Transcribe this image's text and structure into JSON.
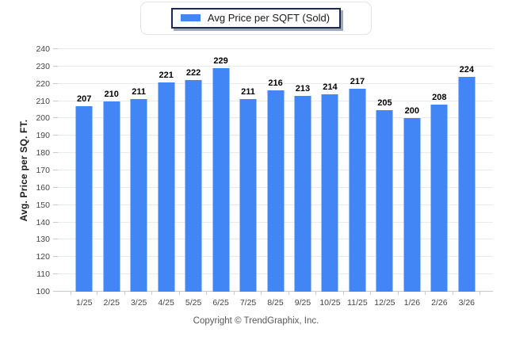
{
  "page": {
    "background": "#ffffff"
  },
  "legend": {
    "label": "Avg Price per SQFT (Sold)",
    "swatch_color": "#4285F4",
    "position": "top-center"
  },
  "chart_data": {
    "type": "bar",
    "title": "",
    "series_name": "Avg Price per SQFT (Sold)",
    "categories": [
      "1/25",
      "2/25",
      "3/25",
      "4/25",
      "5/25",
      "6/25",
      "7/25",
      "8/25",
      "9/25",
      "10/25",
      "11/25",
      "12/25",
      "1/26",
      "2/26",
      "3/26"
    ],
    "values": [
      207,
      210,
      211,
      221,
      222,
      229,
      211,
      216,
      213,
      214,
      217,
      205,
      200,
      208,
      224
    ],
    "xlabel": "",
    "ylabel": "Avg. Price per SQ. FT.",
    "ylim": [
      100,
      240
    ],
    "ytick_step": 10,
    "grid": true,
    "value_labels": true,
    "bar_color": "#4285F4",
    "gridline_color": "#ebebeb",
    "axis_color": "#c9c9c9"
  },
  "footer": {
    "copyright": "Copyright © TrendGraphix, Inc."
  }
}
